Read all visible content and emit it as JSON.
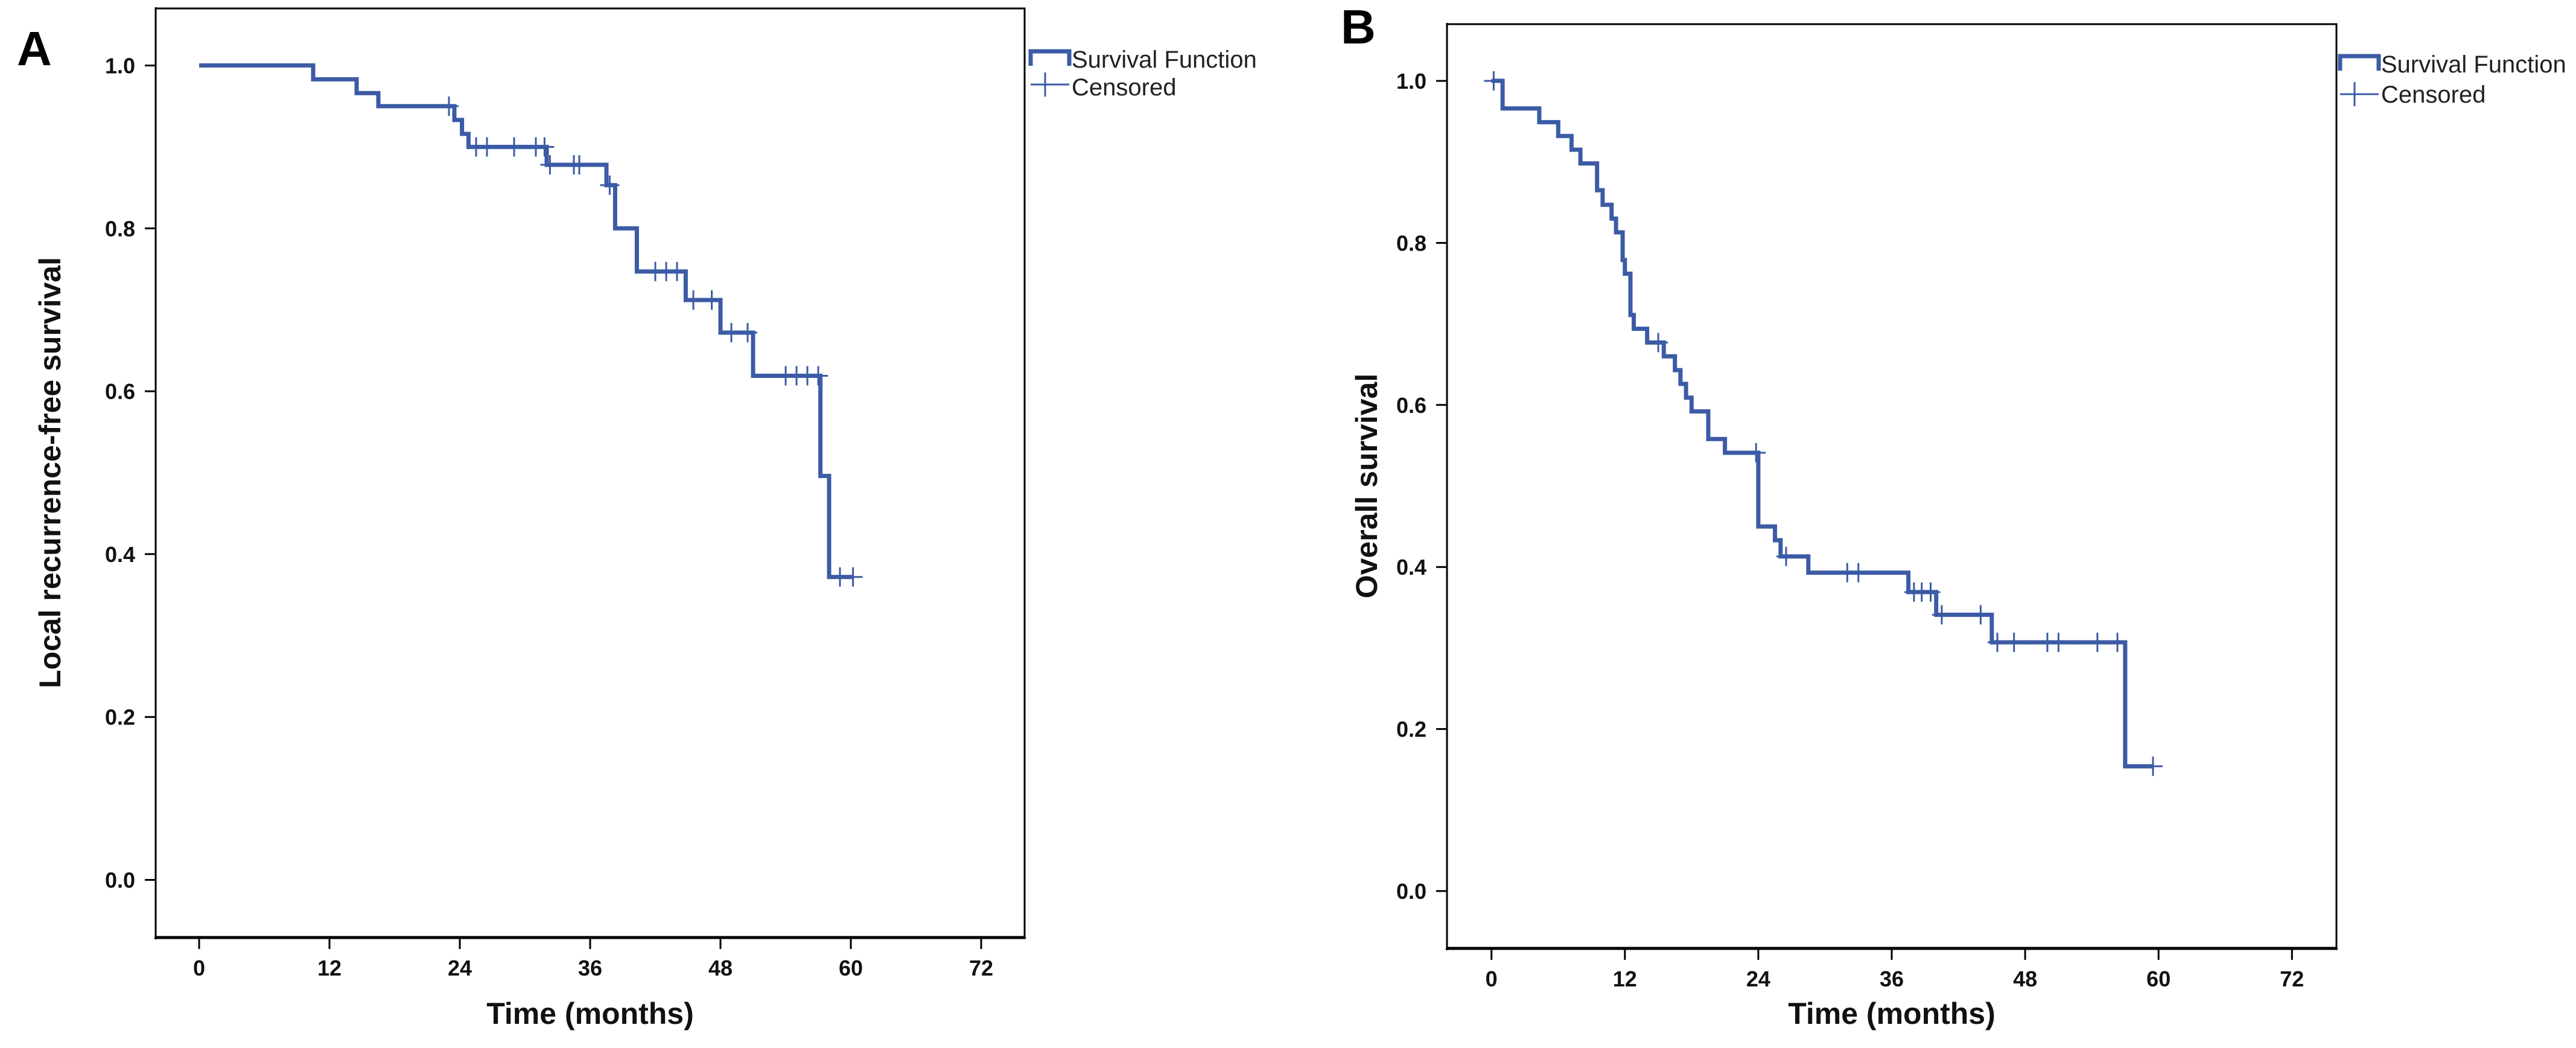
{
  "chart_data": [
    {
      "type": "line",
      "panel_label": "A",
      "xlabel": "Time (months)",
      "ylabel": "Local recurrence-free survival",
      "xticks": [
        0,
        12,
        24,
        36,
        48,
        60,
        72
      ],
      "yticks": [
        "0.0",
        "0.2",
        "0.4",
        "0.6",
        "0.8",
        "1.0"
      ],
      "xlim": [
        -4,
        76
      ],
      "ylim": [
        -0.07,
        1.07
      ],
      "legend": {
        "position": "top-right outside",
        "entries": [
          "Survival Function",
          "Censored"
        ]
      },
      "series": [
        {
          "name": "Survival Function",
          "step_points": [
            [
              0,
              1.0
            ],
            [
              10.5,
              0.983
            ],
            [
              14.5,
              0.966
            ],
            [
              16.5,
              0.95
            ],
            [
              23.5,
              0.933
            ],
            [
              24.2,
              0.916
            ],
            [
              24.8,
              0.9
            ],
            [
              32.0,
              0.878
            ],
            [
              37.5,
              0.853
            ],
            [
              38.3,
              0.8
            ],
            [
              40.3,
              0.747
            ],
            [
              44.8,
              0.712
            ],
            [
              48.0,
              0.672
            ],
            [
              51.0,
              0.619
            ],
            [
              57.2,
              0.496
            ],
            [
              58.0,
              0.372
            ],
            [
              60.2,
              0.372
            ]
          ],
          "censored": [
            [
              23.0,
              0.95
            ],
            [
              25.5,
              0.9
            ],
            [
              26.5,
              0.9
            ],
            [
              29.0,
              0.9
            ],
            [
              31.0,
              0.9
            ],
            [
              31.8,
              0.9
            ],
            [
              32.3,
              0.878
            ],
            [
              34.5,
              0.878
            ],
            [
              35.0,
              0.878
            ],
            [
              37.8,
              0.853
            ],
            [
              42.0,
              0.747
            ],
            [
              43.0,
              0.747
            ],
            [
              44.0,
              0.747
            ],
            [
              45.5,
              0.712
            ],
            [
              47.2,
              0.712
            ],
            [
              49.0,
              0.672
            ],
            [
              50.5,
              0.672
            ],
            [
              54.0,
              0.619
            ],
            [
              55.0,
              0.619
            ],
            [
              56.0,
              0.619
            ],
            [
              57.0,
              0.619
            ],
            [
              59.0,
              0.372
            ],
            [
              60.2,
              0.372
            ]
          ]
        }
      ]
    },
    {
      "type": "line",
      "panel_label": "B",
      "xlabel": "Time (months)",
      "ylabel": "Overall survival",
      "xticks": [
        0,
        12,
        24,
        36,
        48,
        60,
        72
      ],
      "yticks": [
        "0.0",
        "0.2",
        "0.4",
        "0.6",
        "0.8",
        "1.0"
      ],
      "xlim": [
        -4,
        76
      ],
      "ylim": [
        -0.07,
        1.07
      ],
      "legend": {
        "position": "top-right outside",
        "entries": [
          "Survival Function",
          "Censored"
        ]
      },
      "series": [
        {
          "name": "Survival Function",
          "step_points": [
            [
              0,
              1.0
            ],
            [
              1.0,
              0.966
            ],
            [
              4.3,
              0.949
            ],
            [
              6.0,
              0.932
            ],
            [
              7.2,
              0.915
            ],
            [
              8.0,
              0.898
            ],
            [
              9.5,
              0.865
            ],
            [
              10.0,
              0.847
            ],
            [
              10.8,
              0.83
            ],
            [
              11.2,
              0.813
            ],
            [
              11.8,
              0.779
            ],
            [
              12.0,
              0.762
            ],
            [
              12.5,
              0.711
            ],
            [
              12.8,
              0.694
            ],
            [
              14.0,
              0.677
            ],
            [
              15.5,
              0.66
            ],
            [
              16.5,
              0.643
            ],
            [
              17.0,
              0.626
            ],
            [
              17.5,
              0.609
            ],
            [
              18.0,
              0.592
            ],
            [
              19.5,
              0.558
            ],
            [
              21.0,
              0.541
            ],
            [
              24.0,
              0.45
            ],
            [
              25.5,
              0.433
            ],
            [
              26.0,
              0.413
            ],
            [
              28.5,
              0.393
            ],
            [
              37.5,
              0.369
            ],
            [
              40.0,
              0.341
            ],
            [
              45.0,
              0.307
            ],
            [
              57.0,
              0.154
            ],
            [
              59.5,
              0.154
            ]
          ],
          "censored": [
            [
              0.2,
              1.0
            ],
            [
              15.0,
              0.677
            ],
            [
              23.8,
              0.541
            ],
            [
              26.5,
              0.413
            ],
            [
              32.0,
              0.393
            ],
            [
              33.0,
              0.393
            ],
            [
              38.0,
              0.369
            ],
            [
              38.7,
              0.369
            ],
            [
              39.5,
              0.369
            ],
            [
              40.5,
              0.341
            ],
            [
              44.0,
              0.341
            ],
            [
              45.5,
              0.307
            ],
            [
              47.0,
              0.307
            ],
            [
              50.0,
              0.307
            ],
            [
              51.0,
              0.307
            ],
            [
              54.5,
              0.307
            ],
            [
              56.3,
              0.307
            ],
            [
              59.5,
              0.154
            ]
          ]
        }
      ]
    }
  ]
}
